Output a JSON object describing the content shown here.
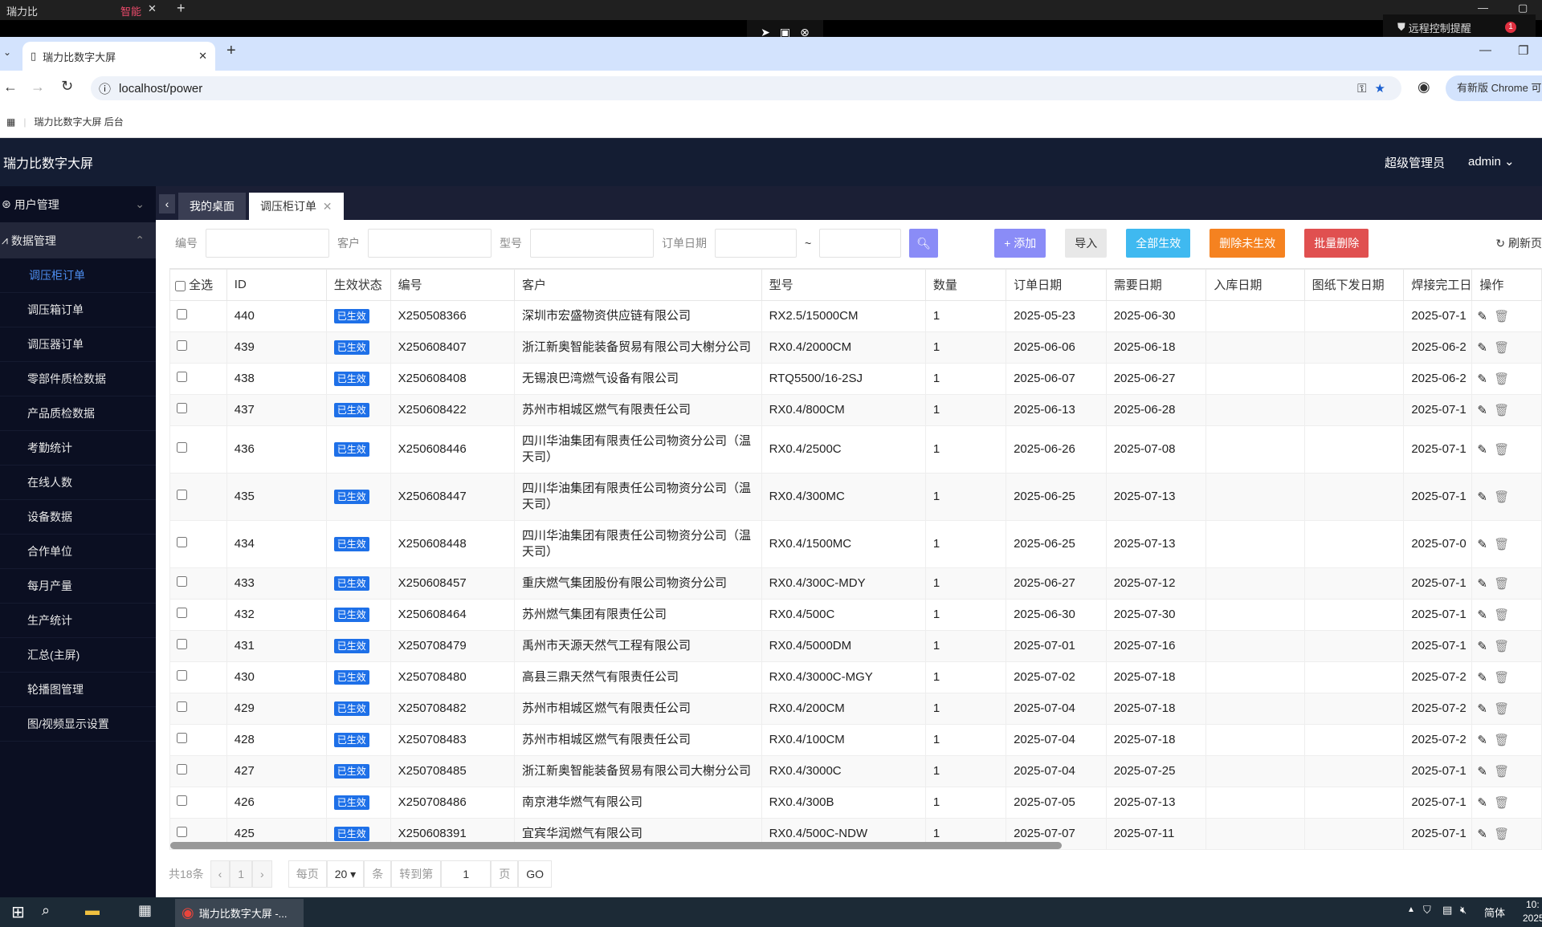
{
  "os": {
    "app_tab": "瑞力比",
    "tab2": "智能",
    "remote_alert": "远程控制提醒",
    "alert_count": "1"
  },
  "browser": {
    "tab_title": "瑞力比数字大屏",
    "url": "localhost/power",
    "bookmark": "瑞力比数字大屏 后台",
    "update_button": "有新版 Chrome 可用"
  },
  "app": {
    "title": "瑞力比数字大屏",
    "role": "超级管理员",
    "user": "admin"
  },
  "sidebar": {
    "groups": [
      {
        "label": "用户管理",
        "icon": "user-circle-icon"
      },
      {
        "label": "数据管理",
        "icon": "line-chart-icon"
      }
    ],
    "items": [
      "调压柜订单",
      "调压箱订单",
      "调压器订单",
      "零部件质检数据",
      "产品质检数据",
      "考勤统计",
      "在线人数",
      "设备数据",
      "合作单位",
      "每月产量",
      "生产统计",
      "汇总(主屏)",
      "轮播图管理",
      "图/视频显示设置"
    ],
    "active": "调压柜订单"
  },
  "tabs": [
    "我的桌面",
    "调压柜订单"
  ],
  "filter": {
    "labels": [
      "编号",
      "客户",
      "型号",
      "订单日期"
    ],
    "sep": "~",
    "buttons": {
      "add": "+ 添加",
      "import": "导入",
      "all_effective": "全部生效",
      "delete_ineffective": "删除未生效",
      "batch_delete": "批量删除",
      "refresh": "刷新页"
    }
  },
  "colors": {
    "add": "#8a8cf7",
    "all": "#3fb9f0",
    "del_inef": "#f58220",
    "batch": "#e05050",
    "badge": "#1e70e8"
  },
  "table": {
    "headers": [
      "全选",
      "ID",
      "生效状态",
      "编号",
      "客户",
      "型号",
      "数量",
      "订单日期",
      "需要日期",
      "入库日期",
      "图纸下发日期",
      "焊接完工日",
      "操作"
    ],
    "rows": [
      [
        "440",
        "已生效",
        "X250508366",
        "深圳市宏盛物资供应链有限公司",
        "RX2.5/15000CM",
        "1",
        "2025-05-23",
        "2025-06-30",
        "",
        "",
        "2025-07-1"
      ],
      [
        "439",
        "已生效",
        "X250608407",
        "浙江新奥智能装备贸易有限公司大榭分公司",
        "RX0.4/2000CM",
        "1",
        "2025-06-06",
        "2025-06-18",
        "",
        "",
        "2025-06-2"
      ],
      [
        "438",
        "已生效",
        "X250608408",
        "无锡浪巴湾燃气设备有限公司",
        "RTQ5500/16-2SJ",
        "1",
        "2025-06-07",
        "2025-06-27",
        "",
        "",
        "2025-06-2"
      ],
      [
        "437",
        "已生效",
        "X250608422",
        "苏州市相城区燃气有限责任公司",
        "RX0.4/800CM",
        "1",
        "2025-06-13",
        "2025-06-28",
        "",
        "",
        "2025-07-1"
      ],
      [
        "436",
        "已生效",
        "X250608446",
        "四川华油集团有限责任公司物资分公司（温天司）",
        "RX0.4/2500C",
        "1",
        "2025-06-26",
        "2025-07-08",
        "",
        "",
        "2025-07-1"
      ],
      [
        "435",
        "已生效",
        "X250608447",
        "四川华油集团有限责任公司物资分公司（温天司）",
        "RX0.4/300MC",
        "1",
        "2025-06-25",
        "2025-07-13",
        "",
        "",
        "2025-07-1"
      ],
      [
        "434",
        "已生效",
        "X250608448",
        "四川华油集团有限责任公司物资分公司（温天司）",
        "RX0.4/1500MC",
        "1",
        "2025-06-25",
        "2025-07-13",
        "",
        "",
        "2025-07-0"
      ],
      [
        "433",
        "已生效",
        "X250608457",
        "重庆燃气集团股份有限公司物资分公司",
        "RX0.4/300C-MDY",
        "1",
        "2025-06-27",
        "2025-07-12",
        "",
        "",
        "2025-07-1"
      ],
      [
        "432",
        "已生效",
        "X250608464",
        "苏州燃气集团有限责任公司",
        "RX0.4/500C",
        "1",
        "2025-06-30",
        "2025-07-30",
        "",
        "",
        "2025-07-1"
      ],
      [
        "431",
        "已生效",
        "X250708479",
        "禹州市天源天然气工程有限公司",
        "RX0.4/5000DM",
        "1",
        "2025-07-01",
        "2025-07-16",
        "",
        "",
        "2025-07-1"
      ],
      [
        "430",
        "已生效",
        "X250708480",
        "高县三鼎天然气有限责任公司",
        "RX0.4/3000C-MGY",
        "1",
        "2025-07-02",
        "2025-07-18",
        "",
        "",
        "2025-07-2"
      ],
      [
        "429",
        "已生效",
        "X250708482",
        "苏州市相城区燃气有限责任公司",
        "RX0.4/200CM",
        "1",
        "2025-07-04",
        "2025-07-18",
        "",
        "",
        "2025-07-2"
      ],
      [
        "428",
        "已生效",
        "X250708483",
        "苏州市相城区燃气有限责任公司",
        "RX0.4/100CM",
        "1",
        "2025-07-04",
        "2025-07-18",
        "",
        "",
        "2025-07-2"
      ],
      [
        "427",
        "已生效",
        "X250708485",
        "浙江新奥智能装备贸易有限公司大榭分公司",
        "RX0.4/3000C",
        "1",
        "2025-07-04",
        "2025-07-25",
        "",
        "",
        "2025-07-1"
      ],
      [
        "426",
        "已生效",
        "X250708486",
        "南京港华燃气有限公司",
        "RX0.4/300B",
        "1",
        "2025-07-05",
        "2025-07-13",
        "",
        "",
        "2025-07-1"
      ],
      [
        "425",
        "已生效",
        "X250608391",
        "宜宾华润燃气有限公司",
        "RX0.4/500C-NDW",
        "1",
        "2025-07-07",
        "2025-07-11",
        "",
        "",
        "2025-07-1"
      ]
    ]
  },
  "pager": {
    "total": "共18条",
    "page": "1",
    "per_page_label": "每页",
    "per_page": "20",
    "unit": "条",
    "goto_label": "转到第",
    "goto_value": "1",
    "page_unit": "页",
    "go": "GO"
  },
  "taskbar": {
    "window": "瑞力比数字大屏 -...",
    "ime": "简体",
    "clock": "10:",
    "date": "2025"
  }
}
